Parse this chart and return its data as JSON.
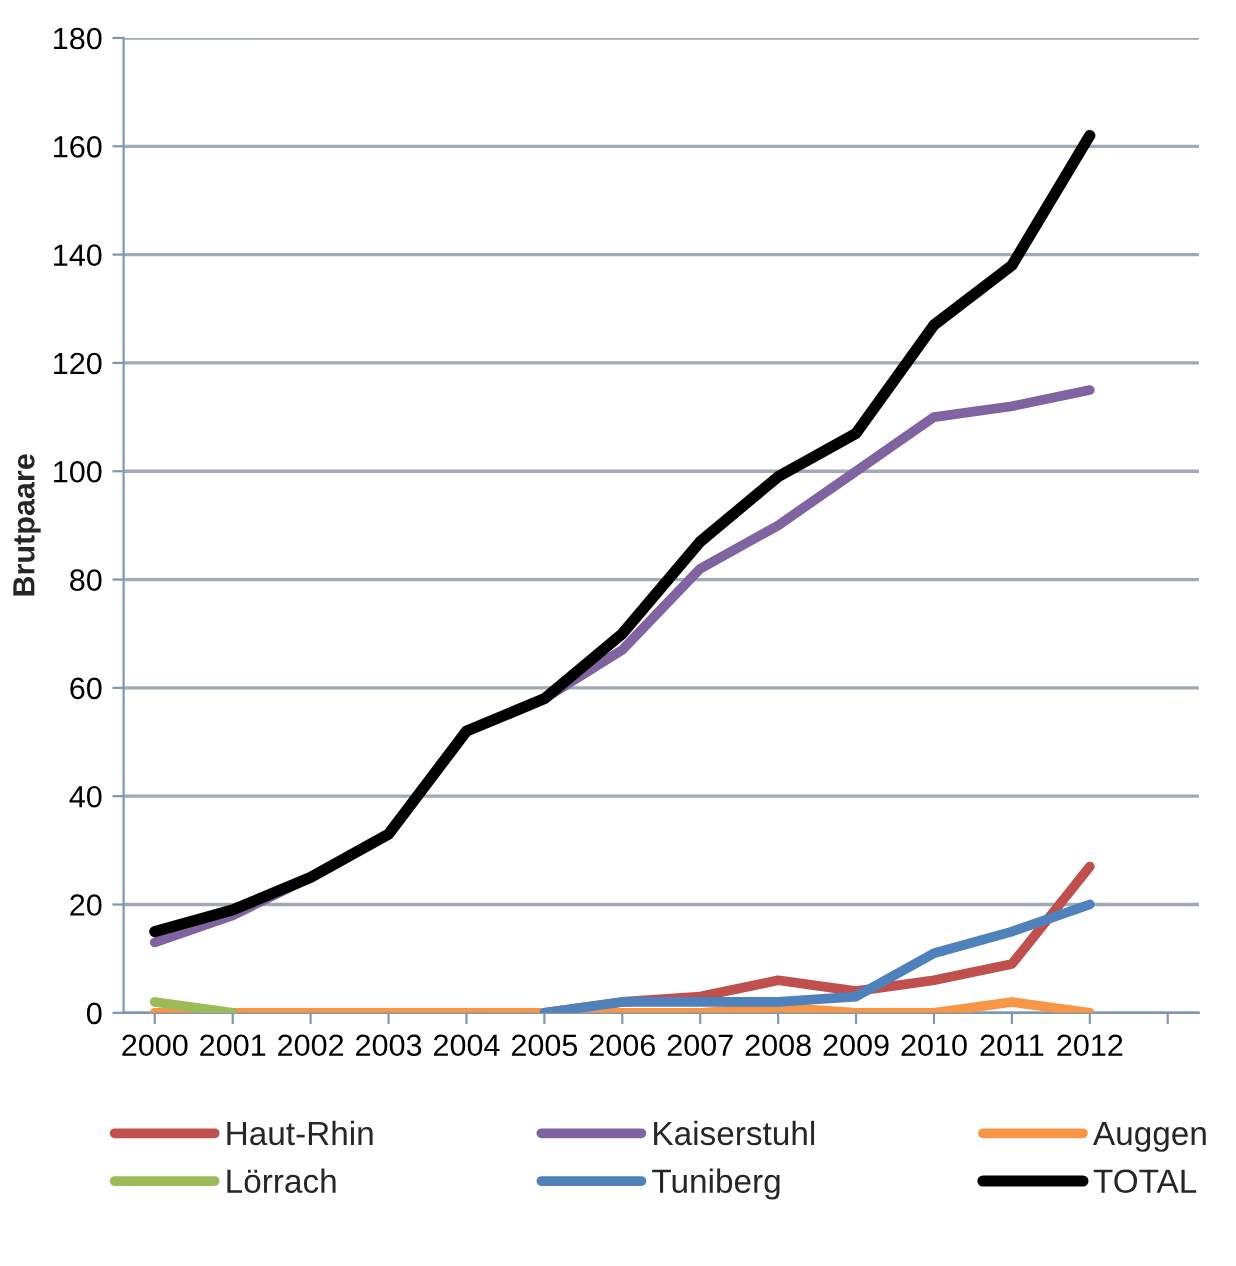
{
  "chart_data": {
    "type": "line",
    "ylabel": "Brutpaare",
    "categories": [
      "2000",
      "2001",
      "2002",
      "2003",
      "2004",
      "2005",
      "2006",
      "2007",
      "2008",
      "2009",
      "2010",
      "2011",
      "2012",
      null
    ],
    "series": [
      {
        "name": "Haut-Rhin",
        "color": "#c0504d",
        "values": [
          null,
          null,
          null,
          null,
          null,
          0,
          2,
          3,
          6,
          4,
          6,
          9,
          27,
          null
        ]
      },
      {
        "name": "Kaiserstuhl",
        "color": "#8064a2",
        "values": [
          13,
          18,
          25,
          33,
          52,
          58,
          67,
          82,
          90,
          100,
          110,
          112,
          115,
          null
        ]
      },
      {
        "name": "Auggen",
        "color": "#f79646",
        "values": [
          0,
          0,
          0,
          0,
          0,
          0,
          0,
          0,
          1,
          0,
          0,
          2,
          0,
          null
        ]
      },
      {
        "name": "Lörrach",
        "color": "#9bbb59",
        "values": [
          2,
          0,
          null,
          null,
          null,
          null,
          null,
          null,
          null,
          null,
          null,
          null,
          null,
          null
        ]
      },
      {
        "name": "Tuniberg",
        "color": "#4f81bd",
        "values": [
          null,
          null,
          null,
          null,
          null,
          0,
          2,
          2,
          2,
          3,
          11,
          15,
          20,
          null
        ]
      },
      {
        "name": "TOTAL",
        "color": "#000000",
        "values": [
          15,
          19,
          25,
          33,
          52,
          58,
          70,
          87,
          99,
          107,
          127,
          138,
          162,
          null
        ]
      }
    ],
    "ylim": [
      0,
      180
    ],
    "yticks": [
      0,
      20,
      40,
      60,
      80,
      100,
      120,
      140,
      160,
      180
    ],
    "grid": "y",
    "legend": "bottom",
    "marker": "none",
    "line_style": "solid"
  }
}
